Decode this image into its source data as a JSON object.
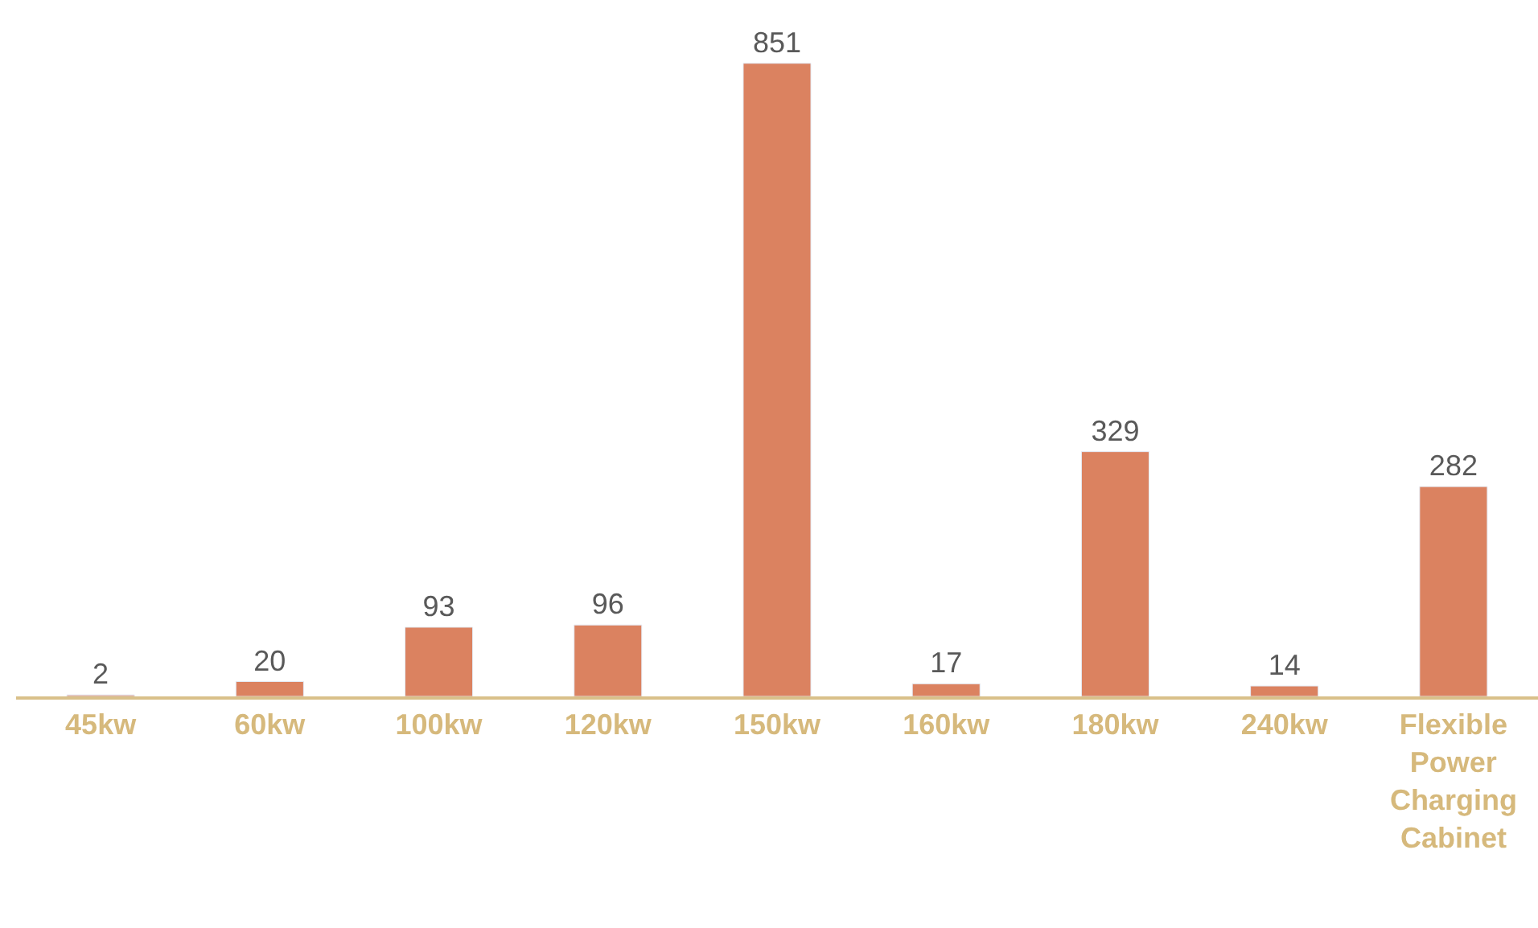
{
  "chart_data": {
    "type": "bar",
    "categories": [
      "45kw",
      "60kw",
      "100kw",
      "120kw",
      "150kw",
      "160kw",
      "180kw",
      "240kw",
      "Flexible Power Charging Cabinet"
    ],
    "values": [
      2,
      20,
      93,
      96,
      851,
      17,
      329,
      14,
      282
    ],
    "color": "#db8260",
    "data_labels": true
  }
}
